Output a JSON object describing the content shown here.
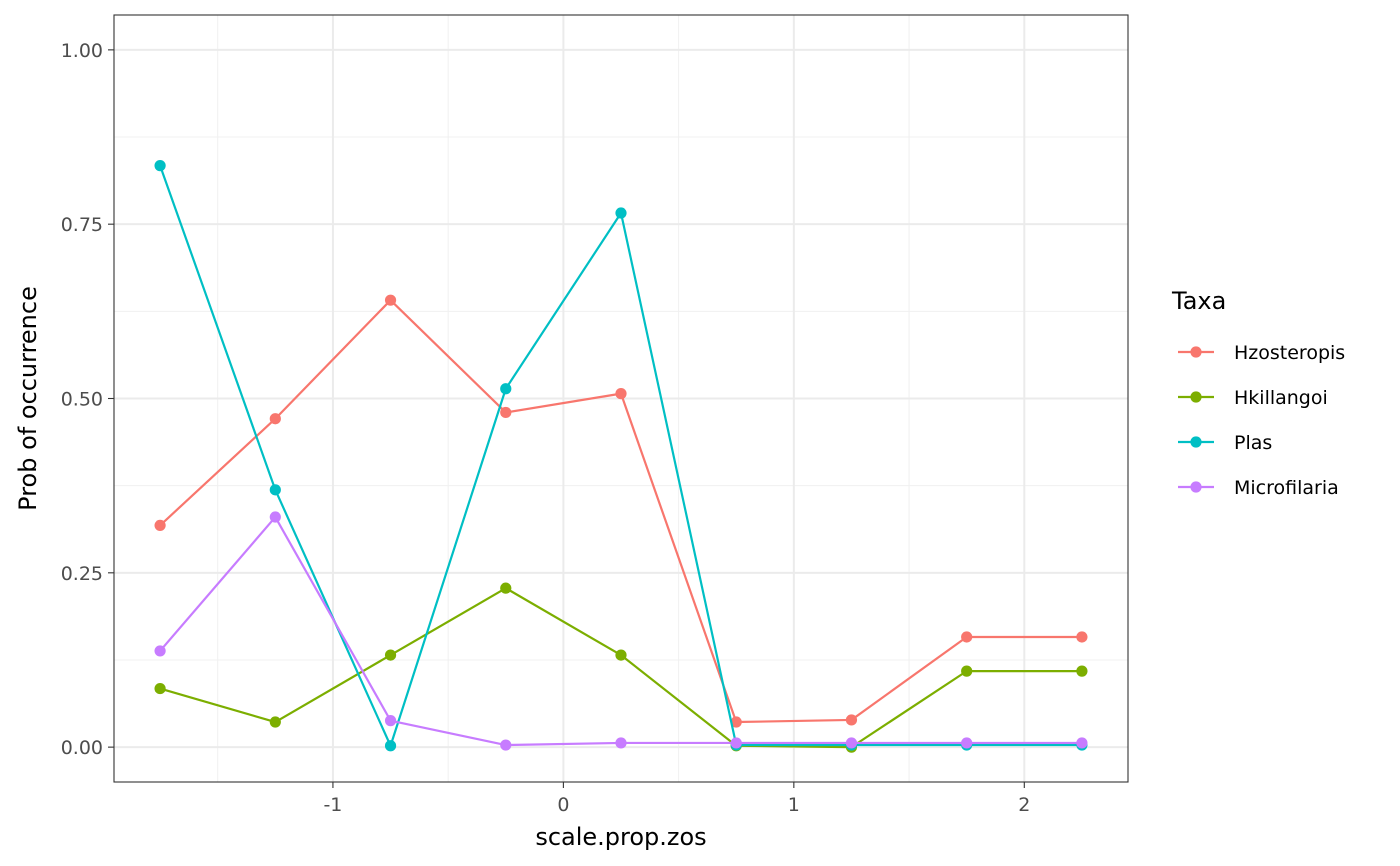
{
  "chart_data": {
    "type": "line",
    "xlabel": "scale.prop.zos",
    "ylabel": "Prob of occurrence",
    "xlim": [
      -1.95,
      2.45
    ],
    "ylim": [
      -0.05,
      1.05
    ],
    "x_ticks": [
      -1,
      0,
      1,
      2
    ],
    "x_tick_labels": [
      "-1",
      "0",
      "1",
      "2"
    ],
    "y_ticks": [
      0,
      0.25,
      0.5,
      0.75,
      1.0
    ],
    "y_tick_labels": [
      "0.00",
      "0.25",
      "0.50",
      "0.75",
      "1.00"
    ],
    "grid": true,
    "legend": {
      "title": "Taxa",
      "position": "right"
    },
    "x": [
      -1.75,
      -1.25,
      -0.75,
      -0.25,
      0.25,
      0.75,
      1.25,
      1.75,
      2.25
    ],
    "series": [
      {
        "name": "Hzosteropis",
        "color": "#F8766D",
        "values": [
          0.318,
          0.471,
          0.641,
          0.48,
          0.507,
          0.036,
          0.039,
          0.158,
          0.158
        ]
      },
      {
        "name": "Hkillangoi",
        "color": "#7CAE00",
        "values": [
          0.084,
          0.036,
          0.132,
          0.228,
          0.132,
          0.002,
          0.0,
          0.109,
          0.109
        ]
      },
      {
        "name": "Plas",
        "color": "#00BFC4",
        "values": [
          0.834,
          0.369,
          0.002,
          0.514,
          0.766,
          0.003,
          0.003,
          0.003,
          0.003
        ]
      },
      {
        "name": "Microfilaria",
        "color": "#C77CFF",
        "values": [
          0.138,
          0.33,
          0.038,
          0.003,
          0.006,
          0.006,
          0.006,
          0.006,
          0.006
        ]
      }
    ]
  }
}
